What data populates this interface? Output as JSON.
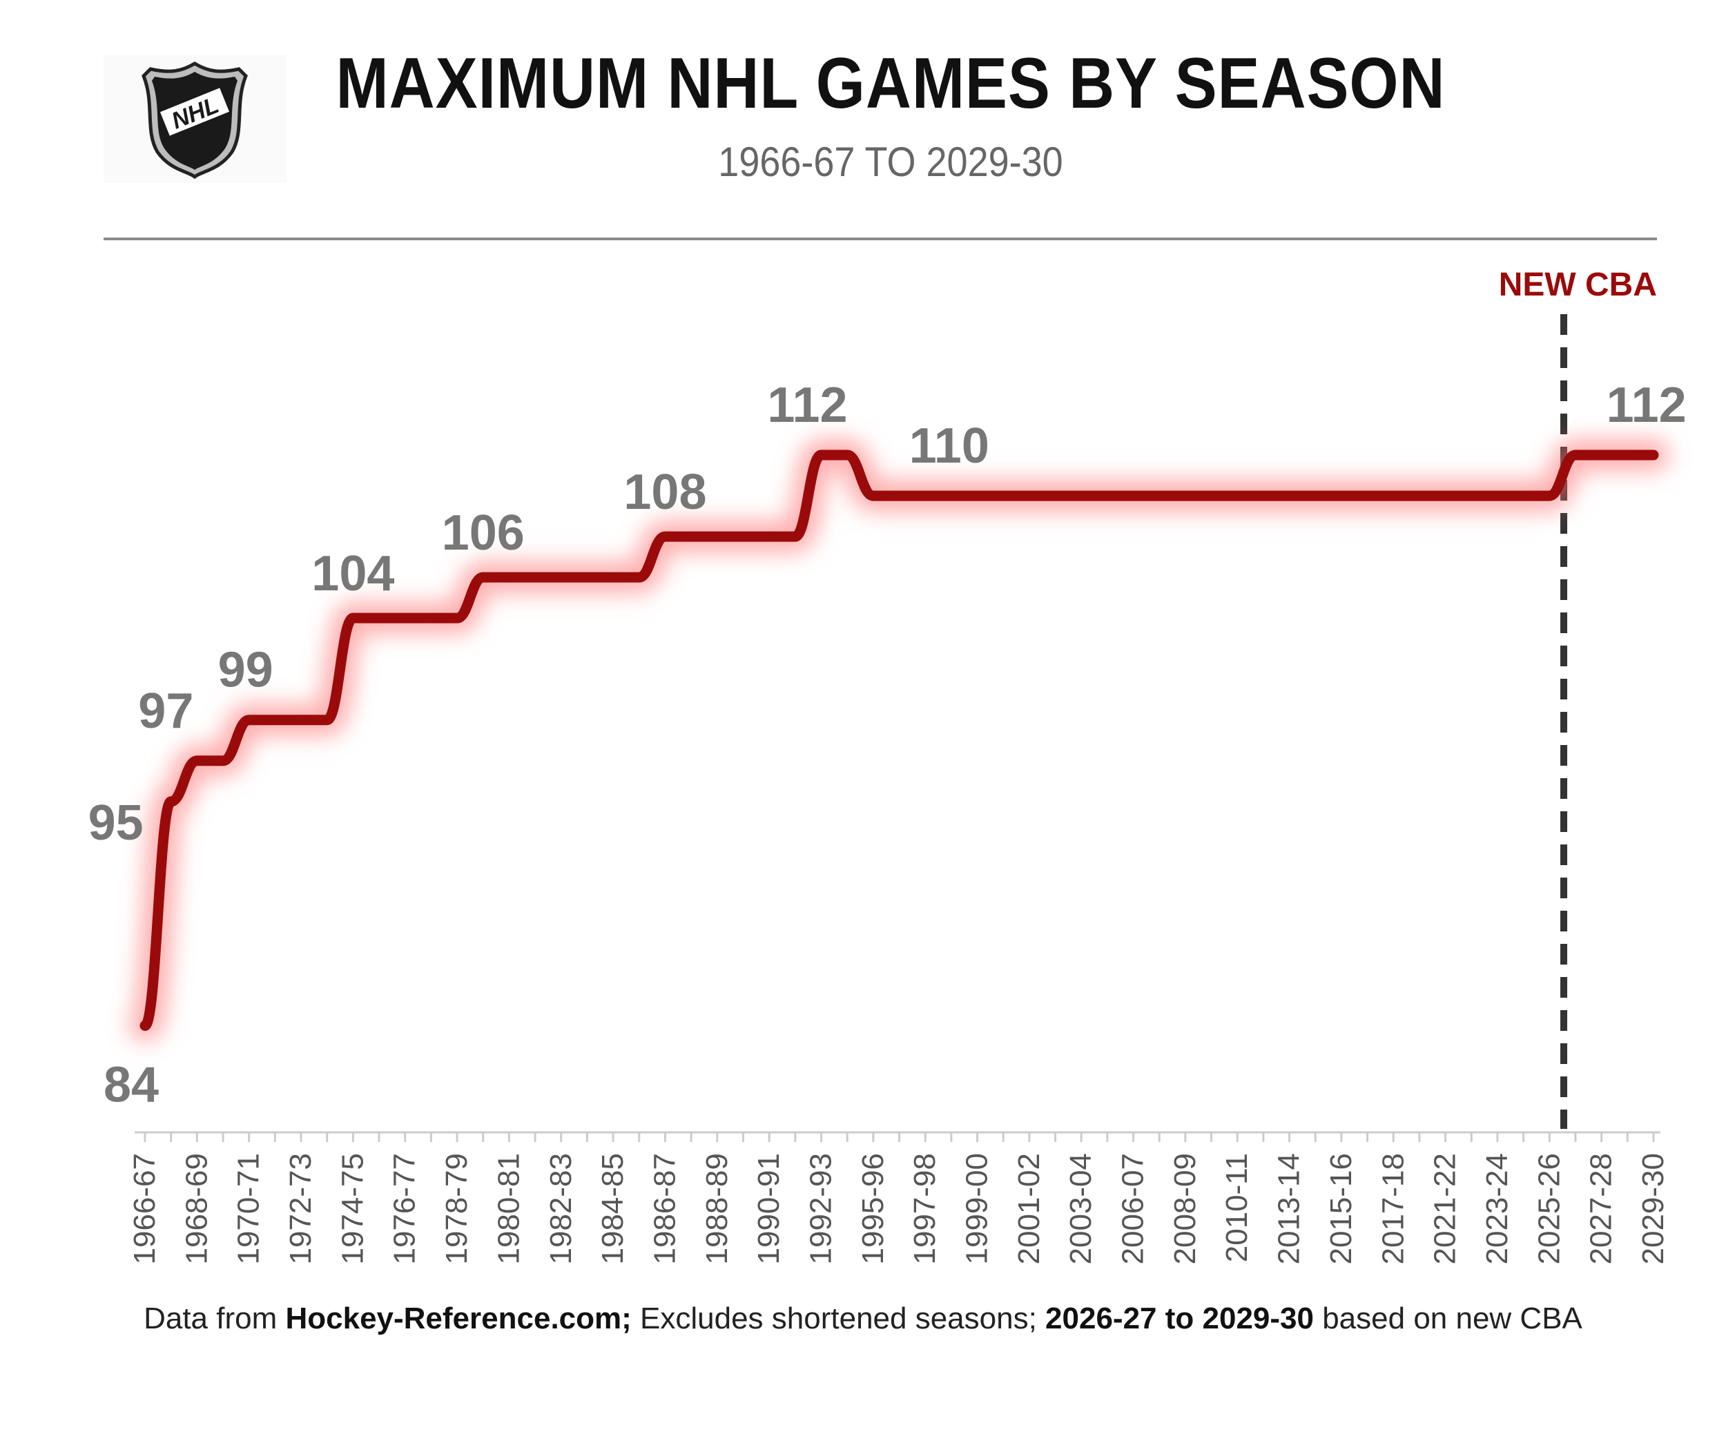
{
  "header": {
    "title": "MAXIMUM NHL GAMES BY SEASON",
    "subtitle": "1966-67 TO 2029-30",
    "logo_text": "NHL"
  },
  "chart_data": {
    "type": "line",
    "x_tick_labels": [
      "1966-67",
      "1968-69",
      "1970-71",
      "1972-73",
      "1974-75",
      "1976-77",
      "1978-79",
      "1980-81",
      "1982-83",
      "1984-85",
      "1986-87",
      "1988-89",
      "1990-91",
      "1992-93",
      "1995-96",
      "1997-98",
      "1999-00",
      "2001-02",
      "2003-04",
      "2006-07",
      "2008-09",
      "2010-11",
      "2013-14",
      "2015-16",
      "2017-18",
      "2021-22",
      "2023-24",
      "2025-26",
      "2027-28",
      "2029-30"
    ],
    "series": [
      {
        "color": "#9b0a0a",
        "points": [
          {
            "x": "1966-67",
            "y": 84
          },
          {
            "x": "1967-68",
            "y": 95
          },
          {
            "x": "1968-69",
            "y": 97
          },
          {
            "x": "1969-70",
            "y": 97
          },
          {
            "x": "1970-71",
            "y": 99
          },
          {
            "x": "1971-72",
            "y": 99
          },
          {
            "x": "1972-73",
            "y": 99
          },
          {
            "x": "1973-74",
            "y": 99
          },
          {
            "x": "1974-75",
            "y": 104
          },
          {
            "x": "1975-76",
            "y": 104
          },
          {
            "x": "1976-77",
            "y": 104
          },
          {
            "x": "1977-78",
            "y": 104
          },
          {
            "x": "1978-79",
            "y": 104
          },
          {
            "x": "1979-80",
            "y": 106
          },
          {
            "x": "1980-81",
            "y": 106
          },
          {
            "x": "1981-82",
            "y": 106
          },
          {
            "x": "1982-83",
            "y": 106
          },
          {
            "x": "1983-84",
            "y": 106
          },
          {
            "x": "1984-85",
            "y": 106
          },
          {
            "x": "1985-86",
            "y": 106
          },
          {
            "x": "1986-87",
            "y": 108
          },
          {
            "x": "1987-88",
            "y": 108
          },
          {
            "x": "1988-89",
            "y": 108
          },
          {
            "x": "1989-90",
            "y": 108
          },
          {
            "x": "1990-91",
            "y": 108
          },
          {
            "x": "1991-92",
            "y": 108
          },
          {
            "x": "1992-93",
            "y": 112
          },
          {
            "x": "1993-94",
            "y": 112
          },
          {
            "x": "1995-96",
            "y": 110
          },
          {
            "x": "1996-97",
            "y": 110
          },
          {
            "x": "1997-98",
            "y": 110
          },
          {
            "x": "1998-99",
            "y": 110
          },
          {
            "x": "1999-00",
            "y": 110
          },
          {
            "x": "2000-01",
            "y": 110
          },
          {
            "x": "2001-02",
            "y": 110
          },
          {
            "x": "2002-03",
            "y": 110
          },
          {
            "x": "2003-04",
            "y": 110
          },
          {
            "x": "2005-06",
            "y": 110
          },
          {
            "x": "2006-07",
            "y": 110
          },
          {
            "x": "2007-08",
            "y": 110
          },
          {
            "x": "2008-09",
            "y": 110
          },
          {
            "x": "2009-10",
            "y": 110
          },
          {
            "x": "2010-11",
            "y": 110
          },
          {
            "x": "2011-12",
            "y": 110
          },
          {
            "x": "2013-14",
            "y": 110
          },
          {
            "x": "2014-15",
            "y": 110
          },
          {
            "x": "2015-16",
            "y": 110
          },
          {
            "x": "2016-17",
            "y": 110
          },
          {
            "x": "2017-18",
            "y": 110
          },
          {
            "x": "2018-19",
            "y": 110
          },
          {
            "x": "2021-22",
            "y": 110
          },
          {
            "x": "2022-23",
            "y": 110
          },
          {
            "x": "2023-24",
            "y": 110
          },
          {
            "x": "2024-25",
            "y": 110
          },
          {
            "x": "2025-26",
            "y": 110
          },
          {
            "x": "2026-27",
            "y": 112
          },
          {
            "x": "2027-28",
            "y": 112
          },
          {
            "x": "2028-29",
            "y": 112
          },
          {
            "x": "2029-30",
            "y": 112
          }
        ]
      }
    ],
    "data_labels": [
      {
        "x": "1966-67",
        "y": 84,
        "text": "84",
        "position": "below"
      },
      {
        "x": "1967-68",
        "y": 95,
        "text": "95",
        "position": "left"
      },
      {
        "x": "1968-69",
        "y": 97,
        "text": "97",
        "position": "above"
      },
      {
        "x": "1970-71",
        "y": 99,
        "text": "99",
        "position": "above"
      },
      {
        "x": "1974-75",
        "y": 104,
        "text": "104",
        "position": "above"
      },
      {
        "x": "1979-80",
        "y": 106,
        "text": "106",
        "position": "above"
      },
      {
        "x": "1986-87",
        "y": 108,
        "text": "108",
        "position": "above"
      },
      {
        "x": "1992-93",
        "y": 112,
        "text": "112",
        "position": "above"
      },
      {
        "x": "1995-96",
        "y": 110,
        "text": "110",
        "position": "above"
      },
      {
        "x": "2027-28",
        "y": 112,
        "text": "112",
        "position": "above"
      }
    ],
    "annotation": {
      "text": "NEW CBA",
      "x": "2026-27",
      "style": "dashed vertical line",
      "color": "#9b0a0a"
    },
    "ylim": [
      83,
      114
    ],
    "y_axis_visible": false,
    "grid": false
  },
  "footnote": {
    "prefix": "Data from ",
    "source": "Hockey-Reference.com;",
    "middle": " Excludes shortened seasons; ",
    "range": "2026-27 to 2029-30",
    "suffix": " based on new CBA"
  }
}
